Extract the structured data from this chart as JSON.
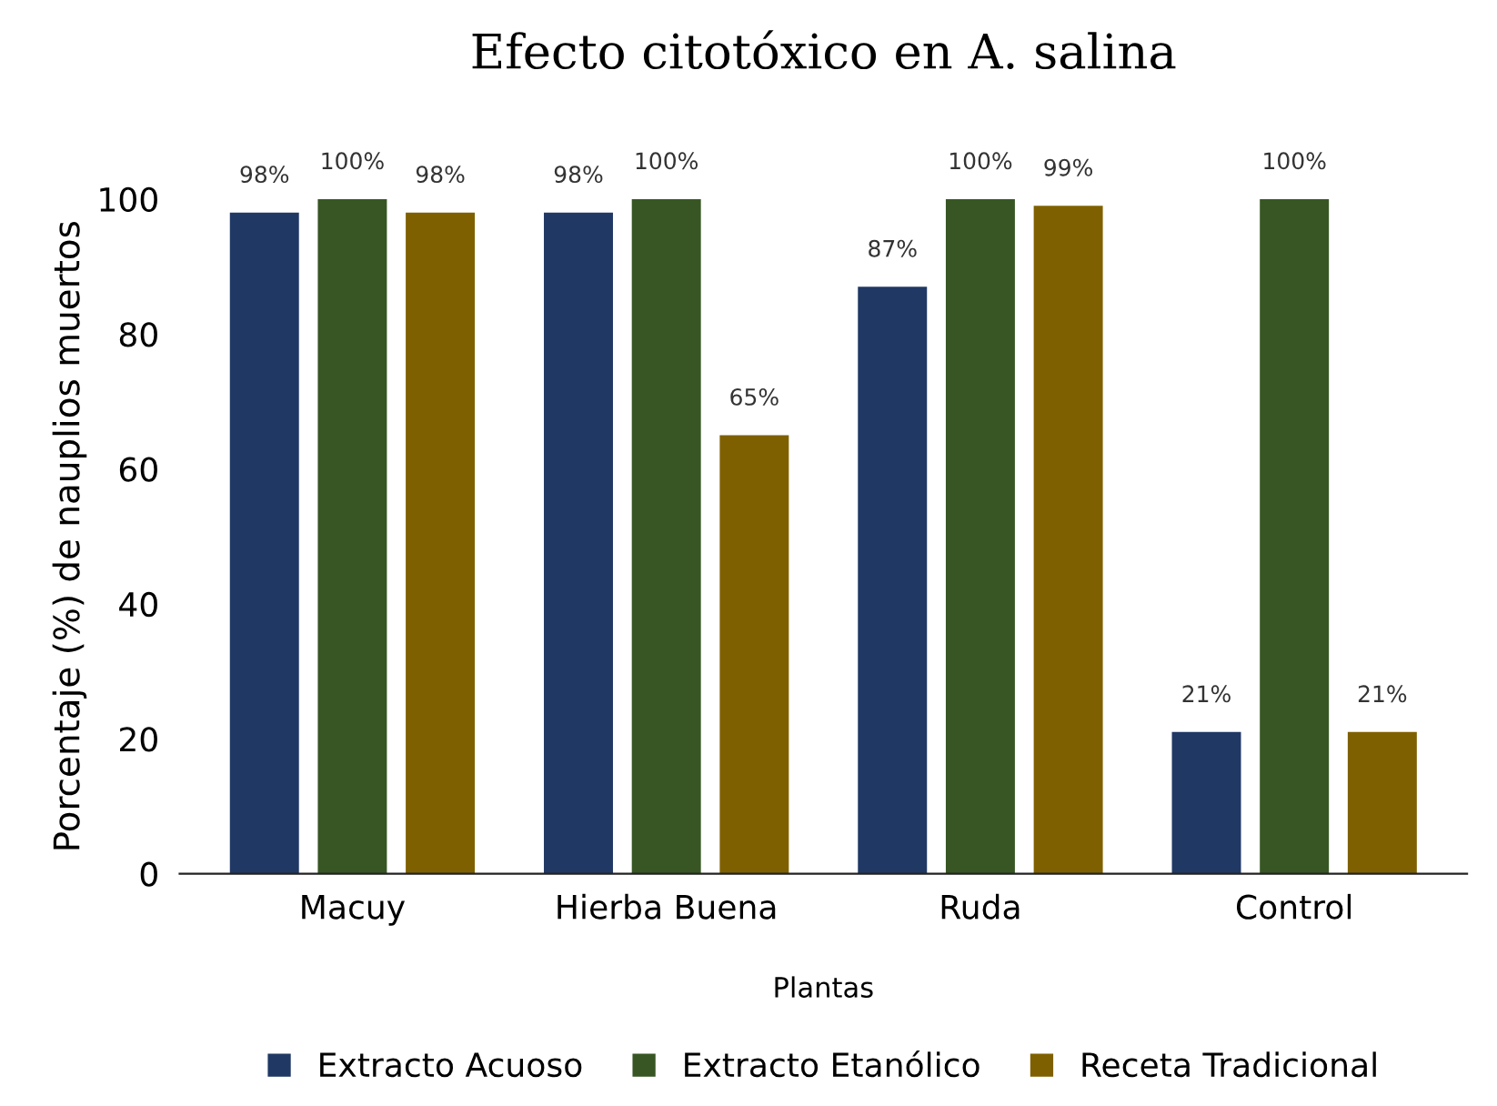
{
  "chart_data": {
    "type": "bar",
    "title": "Efecto citotóxico en A. salina",
    "xlabel": "Plantas",
    "ylabel": "Porcentaje (%) de nauplios muertos",
    "categories": [
      "Macuy",
      "Hierba Buena",
      "Ruda",
      "Control"
    ],
    "series": [
      {
        "name": "Extracto Acuoso",
        "color": "#203864",
        "values": [
          98,
          98,
          87,
          21
        ],
        "value_labels": [
          "98%",
          "98%",
          "87%",
          "21%"
        ]
      },
      {
        "name": "Extracto Etanólico",
        "color": "#375623",
        "values": [
          100,
          100,
          100,
          100
        ],
        "value_labels": [
          "100%",
          "100%",
          "100%",
          "100%"
        ]
      },
      {
        "name": "Receta Tradicional",
        "color": "#7f6000",
        "values": [
          98,
          65,
          99,
          21
        ],
        "value_labels": [
          "98%",
          "65%",
          "99%",
          "21%"
        ]
      }
    ],
    "ylim": [
      0,
      100
    ],
    "yticks": [
      0,
      20,
      40,
      60,
      80,
      100
    ],
    "grid": false,
    "legend": "bottom"
  }
}
